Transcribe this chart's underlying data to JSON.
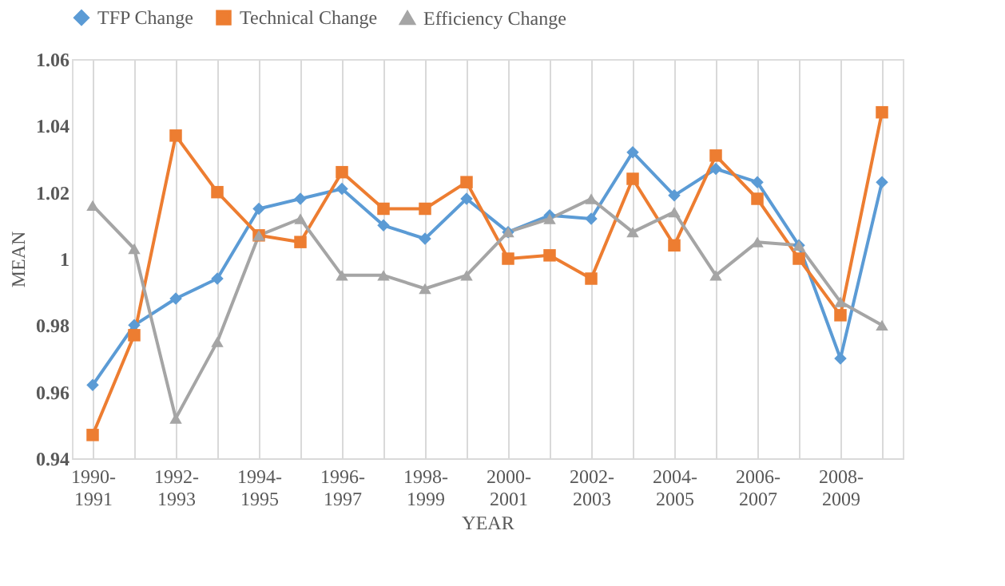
{
  "chart_data": {
    "type": "line",
    "categories": [
      "1990-1991",
      null,
      "1992-1993",
      null,
      "1994-1995",
      null,
      "1996-1997",
      null,
      "1998-1999",
      null,
      "2000-2001",
      null,
      "2002-2003",
      null,
      "2004-2005",
      null,
      "2006-2007",
      null,
      "2008-2009",
      null
    ],
    "series": [
      {
        "name": "TFP Change",
        "color": "#5b9bd5",
        "marker": "diamond",
        "values": [
          0.962,
          0.98,
          0.988,
          0.994,
          1.015,
          1.018,
          1.021,
          1.01,
          1.006,
          1.018,
          1.008,
          1.013,
          1.012,
          1.032,
          1.019,
          1.027,
          1.023,
          1.004,
          0.97,
          1.023
        ]
      },
      {
        "name": "Technical Change",
        "color": "#ed7d31",
        "marker": "square",
        "values": [
          0.947,
          0.977,
          1.037,
          1.02,
          1.007,
          1.005,
          1.026,
          1.015,
          1.015,
          1.023,
          1.0,
          1.001,
          0.994,
          1.024,
          1.004,
          1.031,
          1.018,
          1.0,
          0.983,
          1.044
        ]
      },
      {
        "name": "Efficiency Change",
        "color": "#a5a5a5",
        "marker": "triangle",
        "values": [
          1.016,
          1.003,
          0.952,
          0.975,
          1.007,
          1.012,
          0.995,
          0.995,
          0.991,
          0.995,
          1.008,
          1.012,
          1.018,
          1.008,
          1.014,
          0.995,
          1.005,
          1.004,
          0.987,
          0.98
        ]
      }
    ],
    "xlabel": "YEAR",
    "ylabel": "MEAN",
    "ylim": [
      0.94,
      1.06
    ],
    "yticks": [
      0.94,
      0.96,
      0.98,
      1,
      1.02,
      1.04,
      1.06
    ],
    "grid": "x",
    "legend": "top",
    "line_style": "solid"
  }
}
